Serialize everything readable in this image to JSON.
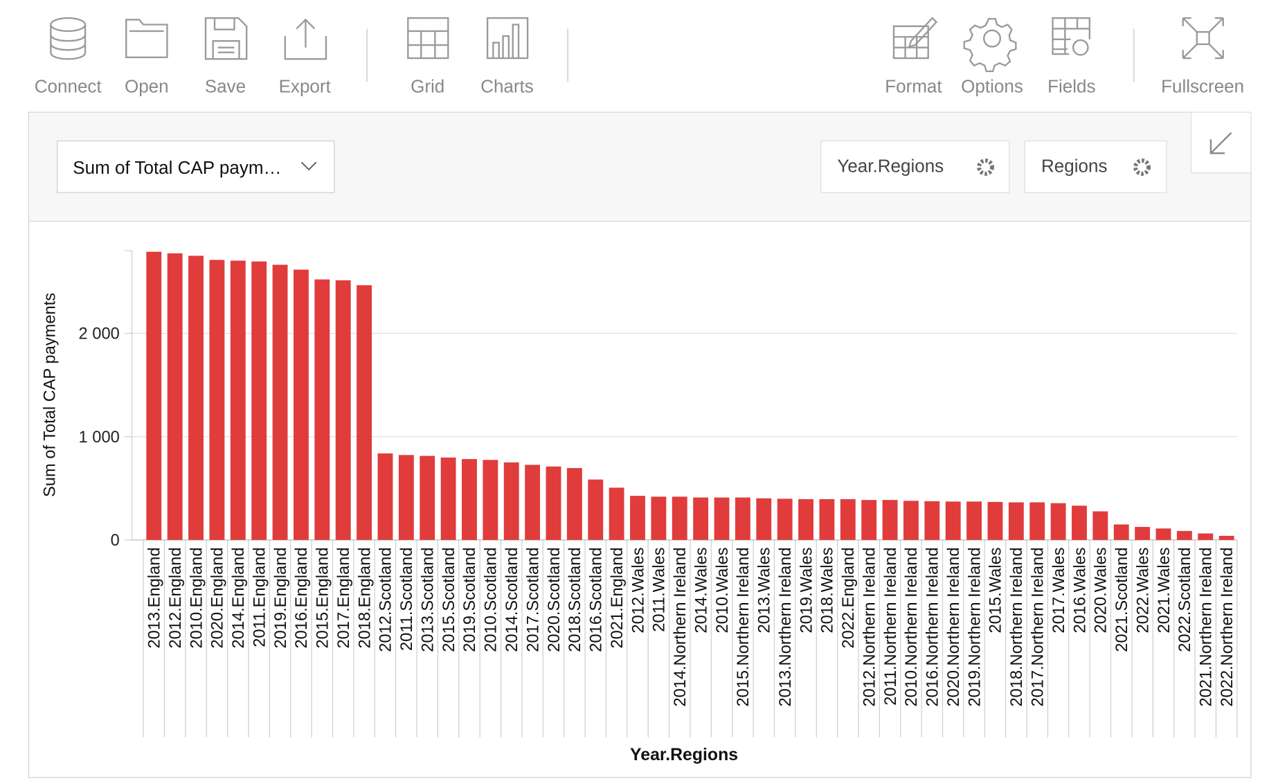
{
  "toolbar": {
    "left": [
      "Connect",
      "Open",
      "Save",
      "Export",
      "Grid",
      "Charts"
    ],
    "right": [
      "Format",
      "Options",
      "Fields",
      "Fullscreen"
    ]
  },
  "controls": {
    "measure": "Sum of Total CAP paym…",
    "filters": [
      "Year.Regions",
      "Regions"
    ]
  },
  "chart_data": {
    "type": "bar",
    "x_label": "Year.Regions",
    "y_label": "Sum of Total CAP payments",
    "color": "#e03c3c",
    "categories": [
      "2013.England",
      "2012.England",
      "2010.England",
      "2020.England",
      "2014.England",
      "2011.England",
      "2019.England",
      "2016.England",
      "2015.England",
      "2017.England",
      "2018.England",
      "2012.Scotland",
      "2011.Scotland",
      "2013.Scotland",
      "2015.Scotland",
      "2019.Scotland",
      "2010.Scotland",
      "2014.Scotland",
      "2017.Scotland",
      "2020.Scotland",
      "2018.Scotland",
      "2016.Scotland",
      "2021.England",
      "2012.Wales",
      "2011.Wales",
      "2014.Northern Ireland",
      "2014.Wales",
      "2010.Wales",
      "2015.Northern Ireland",
      "2013.Wales",
      "2013.Northern Ireland",
      "2019.Wales",
      "2018.Wales",
      "2022.England",
      "2012.Northern Ireland",
      "2011.Northern Ireland",
      "2010.Northern Ireland",
      "2016.Northern Ireland",
      "2020.Northern Ireland",
      "2019.Northern Ireland",
      "2015.Wales",
      "2018.Northern Ireland",
      "2017.Northern Ireland",
      "2017.Wales",
      "2016.Wales",
      "2020.Wales",
      "2021.Scotland",
      "2022.Wales",
      "2021.Wales",
      "2022.Scotland",
      "2021.Northern Ireland",
      "2022.Northern Ireland"
    ],
    "values": [
      2790,
      2775,
      2751,
      2711,
      2704,
      2696,
      2664,
      2617,
      2522,
      2514,
      2466,
      838,
      822,
      814,
      798,
      783,
      775,
      751,
      727,
      711,
      696,
      585,
      506,
      427,
      419,
      419,
      411,
      411,
      411,
      403,
      399,
      395,
      395,
      395,
      387,
      387,
      379,
      375,
      372,
      372,
      368,
      364,
      364,
      356,
      332,
      277,
      150,
      126,
      111,
      87,
      63,
      40
    ],
    "ylim": [
      0,
      2800
    ],
    "yticks": [
      0,
      {
        "value": 1000,
        "label": "1 000"
      },
      {
        "value": 2000,
        "label": "2 000"
      }
    ],
    "grid": true
  }
}
